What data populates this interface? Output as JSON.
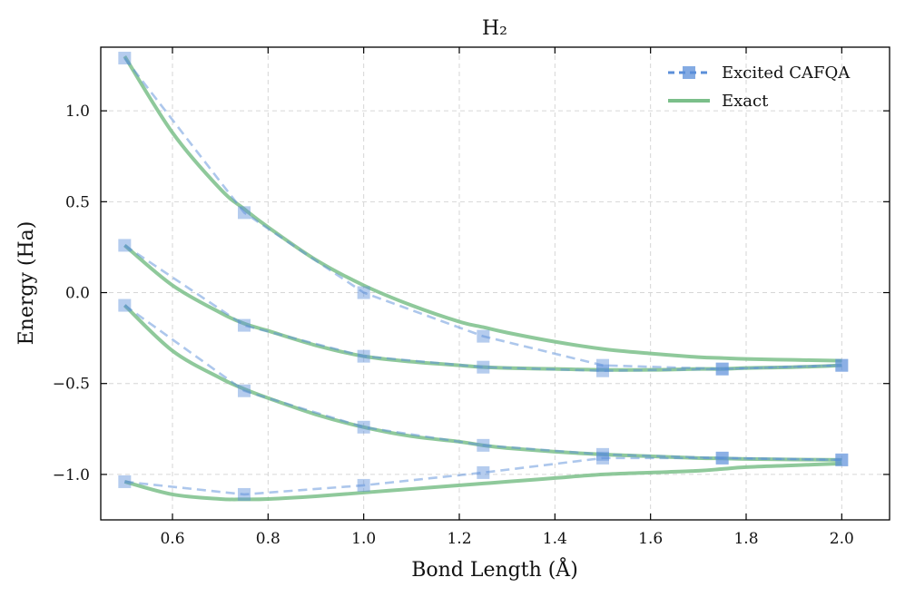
{
  "chart_data": {
    "type": "line",
    "title": "H₂",
    "xlabel": "Bond Length (Å)",
    "ylabel": "Energy (Ha)",
    "xlim": [
      0.45,
      2.1
    ],
    "ylim": [
      -1.25,
      1.35
    ],
    "xticks": [
      0.6,
      0.8,
      1.0,
      1.2,
      1.4,
      1.6,
      1.8,
      2.0
    ],
    "xtick_labels": [
      "0.6",
      "0.8",
      "1.0",
      "1.2",
      "1.4",
      "1.6",
      "1.8",
      "2.0"
    ],
    "yticks": [
      1.0,
      0.5,
      0.0,
      -0.5,
      -1.0
    ],
    "ytick_labels": [
      "1.0",
      "0.5",
      "0.0",
      "−0.5",
      "−1.0"
    ],
    "grid": true,
    "legend_position": "top-right",
    "legend": [
      "Excited CAFQA",
      "Exact"
    ],
    "colors": {
      "cafqa": "#5b8fd9",
      "exact": "#7bbf8a"
    },
    "series": [
      {
        "name": "Excited CAFQA",
        "style": "dashed-square-markers",
        "x": [
          0.5,
          0.75,
          1.0,
          1.25,
          1.5,
          1.75,
          2.0
        ],
        "lines": [
          [
            1.29,
            0.44,
            0.0,
            -0.24,
            -0.4,
            -0.42,
            -0.4
          ],
          [
            0.26,
            -0.18,
            -0.35,
            -0.41,
            -0.43,
            -0.42,
            -0.4
          ],
          [
            -0.07,
            -0.54,
            -0.74,
            -0.84,
            -0.89,
            -0.91,
            -0.92
          ],
          [
            -1.04,
            -1.11,
            -1.06,
            -0.99,
            -0.91,
            -0.91,
            -0.92
          ]
        ]
      },
      {
        "name": "Exact",
        "style": "solid",
        "x": [
          0.5,
          0.6,
          0.7,
          0.75,
          0.8,
          0.9,
          1.0,
          1.1,
          1.2,
          1.25,
          1.3,
          1.4,
          1.5,
          1.6,
          1.7,
          1.75,
          1.8,
          1.9,
          2.0
        ],
        "lines": [
          [
            1.3,
            0.88,
            0.57,
            0.46,
            0.36,
            0.18,
            0.04,
            -0.07,
            -0.16,
            -0.19,
            -0.22,
            -0.27,
            -0.31,
            -0.335,
            -0.355,
            -0.36,
            -0.365,
            -0.37,
            -0.375
          ],
          [
            0.26,
            0.04,
            -0.11,
            -0.17,
            -0.21,
            -0.29,
            -0.35,
            -0.38,
            -0.4,
            -0.41,
            -0.415,
            -0.42,
            -0.425,
            -0.425,
            -0.42,
            -0.42,
            -0.415,
            -0.41,
            -0.4
          ],
          [
            -0.07,
            -0.32,
            -0.47,
            -0.53,
            -0.58,
            -0.67,
            -0.74,
            -0.79,
            -0.82,
            -0.84,
            -0.855,
            -0.875,
            -0.89,
            -0.9,
            -0.91,
            -0.912,
            -0.915,
            -0.918,
            -0.92
          ],
          [
            -1.04,
            -1.11,
            -1.135,
            -1.137,
            -1.135,
            -1.12,
            -1.1,
            -1.08,
            -1.06,
            -1.05,
            -1.04,
            -1.02,
            -1.0,
            -0.99,
            -0.98,
            -0.97,
            -0.96,
            -0.95,
            -0.94
          ]
        ]
      }
    ]
  }
}
